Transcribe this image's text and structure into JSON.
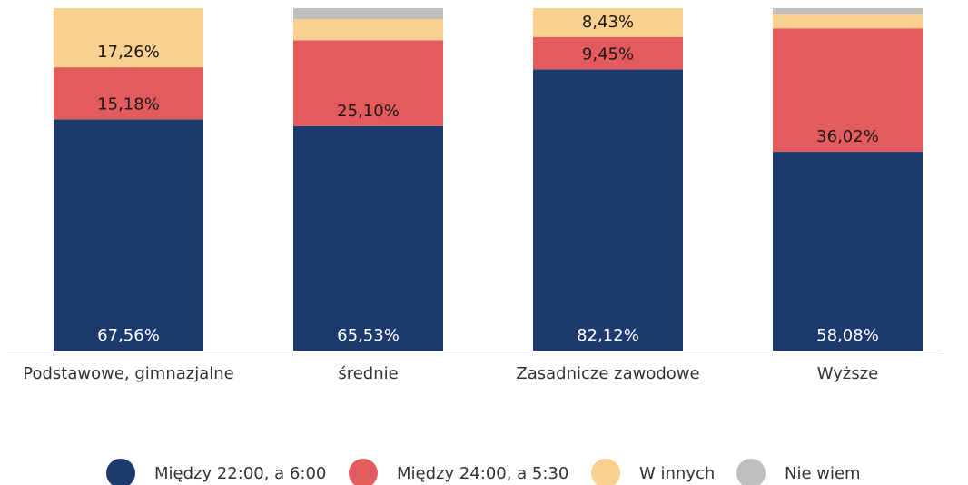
{
  "chart_data": {
    "type": "stacked_bar",
    "categories": [
      "Podstawowe, gimnazjalne",
      "średnie",
      "Zasadnicze zawodowe",
      "Wyższe"
    ],
    "ylim": [
      0,
      100
    ],
    "series": [
      {
        "name": "Między 22:00, a 6:00",
        "color": "#1d3a6e",
        "label_color": "#ffffff",
        "values": [
          67.56,
          65.53,
          82.12,
          58.08
        ],
        "value_labels": [
          "67,56%",
          "65,53%",
          "82,12%",
          "58,08%"
        ]
      },
      {
        "name": "Między 24:00, a 5:30",
        "color": "#e35b5d",
        "label_color": "#1a1a1a",
        "values": [
          15.18,
          25.1,
          9.45,
          36.02
        ],
        "value_labels": [
          "15,18%",
          "25,10%",
          "9,45%",
          "36,02%"
        ]
      },
      {
        "name": "W innych",
        "color": "#f9d08f",
        "label_color": "#1a1a1a",
        "values": [
          17.26,
          6.2,
          8.43,
          4.3
        ],
        "value_labels": [
          "17,26%",
          null,
          "8,43%",
          null
        ]
      },
      {
        "name": "Nie wiem",
        "color": "#bfbfbf",
        "label_color": "#1a1a1a",
        "values": [
          0,
          3.2,
          0,
          1.6
        ],
        "value_labels": [
          null,
          null,
          null,
          null
        ]
      }
    ]
  }
}
